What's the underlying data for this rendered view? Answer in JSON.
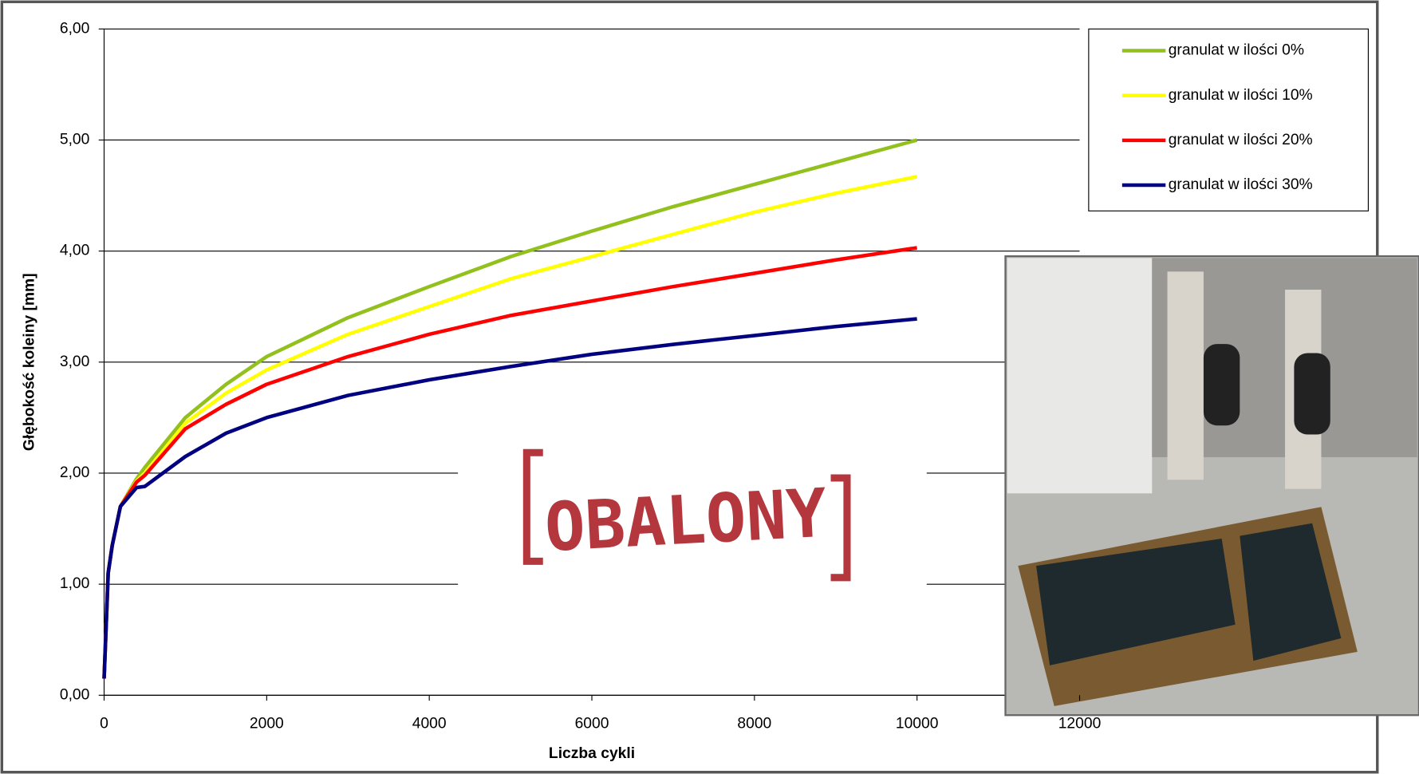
{
  "chart_data": {
    "type": "line",
    "x_label": "Liczba cykli",
    "y_label": "Głębokość koleiny [mm]",
    "stamp": "OBALONY",
    "x": [
      0,
      50,
      100,
      200,
      400,
      500,
      1000,
      1500,
      2000,
      3000,
      4000,
      5000,
      6000,
      7000,
      8000,
      9000,
      10000
    ],
    "series": [
      {
        "name": "granulat w ilości 0%",
        "color": "#92c01c",
        "values": [
          0.15,
          1.1,
          1.35,
          1.7,
          1.95,
          2.05,
          2.5,
          2.8,
          3.05,
          3.4,
          3.68,
          3.95,
          4.18,
          4.4,
          4.6,
          4.8,
          5.0
        ]
      },
      {
        "name": "granulat w ilości 10%",
        "color": "#ffff00",
        "values": [
          0.15,
          1.1,
          1.35,
          1.7,
          1.93,
          2.0,
          2.45,
          2.72,
          2.93,
          3.25,
          3.5,
          3.75,
          3.95,
          4.15,
          4.35,
          4.52,
          4.67
        ]
      },
      {
        "name": "granulat w ilości 20%",
        "color": "#ff0000",
        "values": [
          0.15,
          1.1,
          1.35,
          1.7,
          1.92,
          1.98,
          2.4,
          2.62,
          2.8,
          3.05,
          3.25,
          3.42,
          3.55,
          3.68,
          3.8,
          3.92,
          4.03
        ]
      },
      {
        "name": "granulat w ilości 30%",
        "color": "#000080",
        "values": [
          0.15,
          1.1,
          1.35,
          1.7,
          1.87,
          1.88,
          2.15,
          2.36,
          2.5,
          2.7,
          2.84,
          2.96,
          3.07,
          3.16,
          3.24,
          3.32,
          3.39
        ]
      }
    ],
    "xlim": [
      0,
      12000
    ],
    "xticks": [
      0,
      2000,
      4000,
      6000,
      8000,
      10000,
      12000
    ],
    "ylim": [
      0,
      6
    ],
    "yticks": [
      {
        "value": 0,
        "label": "0,00"
      },
      {
        "value": 1,
        "label": "1,00"
      },
      {
        "value": 2,
        "label": "2,00"
      },
      {
        "value": 3,
        "label": "3,00"
      },
      {
        "value": 4,
        "label": "4,00"
      },
      {
        "value": 5,
        "label": "5,00"
      },
      {
        "value": 6,
        "label": "6,00"
      }
    ],
    "grid": true,
    "legend": "upper right"
  }
}
